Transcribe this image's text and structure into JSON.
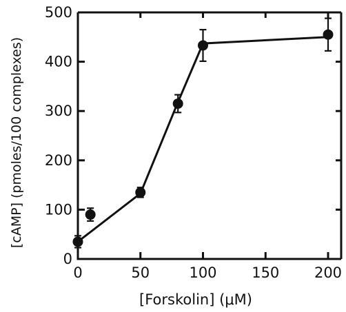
{
  "chart_data": {
    "type": "line",
    "xlabel": "[Forskolin] (μM)",
    "ylabel": "[cAMP] (pmoles/100 complexes)",
    "xlim": [
      0,
      210
    ],
    "ylim": [
      0,
      500
    ],
    "x_ticks": [
      0,
      50,
      100,
      150,
      200
    ],
    "y_ticks": [
      0,
      100,
      200,
      300,
      400,
      500
    ],
    "x_tick_labels": [
      "0",
      "50",
      "100",
      "150",
      "200"
    ],
    "y_tick_labels": [
      "0",
      "100",
      "200",
      "300",
      "400",
      "500"
    ],
    "grid": false,
    "points": [
      {
        "x": 0,
        "y": 35,
        "err": 12
      },
      {
        "x": 10,
        "y": 90,
        "err": 13
      },
      {
        "x": 50,
        "y": 135,
        "err": 10
      },
      {
        "x": 80,
        "y": 315,
        "err": 18
      },
      {
        "x": 100,
        "y": 433,
        "err": 32
      },
      {
        "x": 200,
        "y": 455,
        "err": 33
      }
    ],
    "curve": [
      {
        "x": 0,
        "y": 35
      },
      {
        "x": 50,
        "y": 133
      },
      {
        "x": 80,
        "y": 318
      },
      {
        "x": 100,
        "y": 437
      },
      {
        "x": 200,
        "y": 450
      }
    ]
  }
}
